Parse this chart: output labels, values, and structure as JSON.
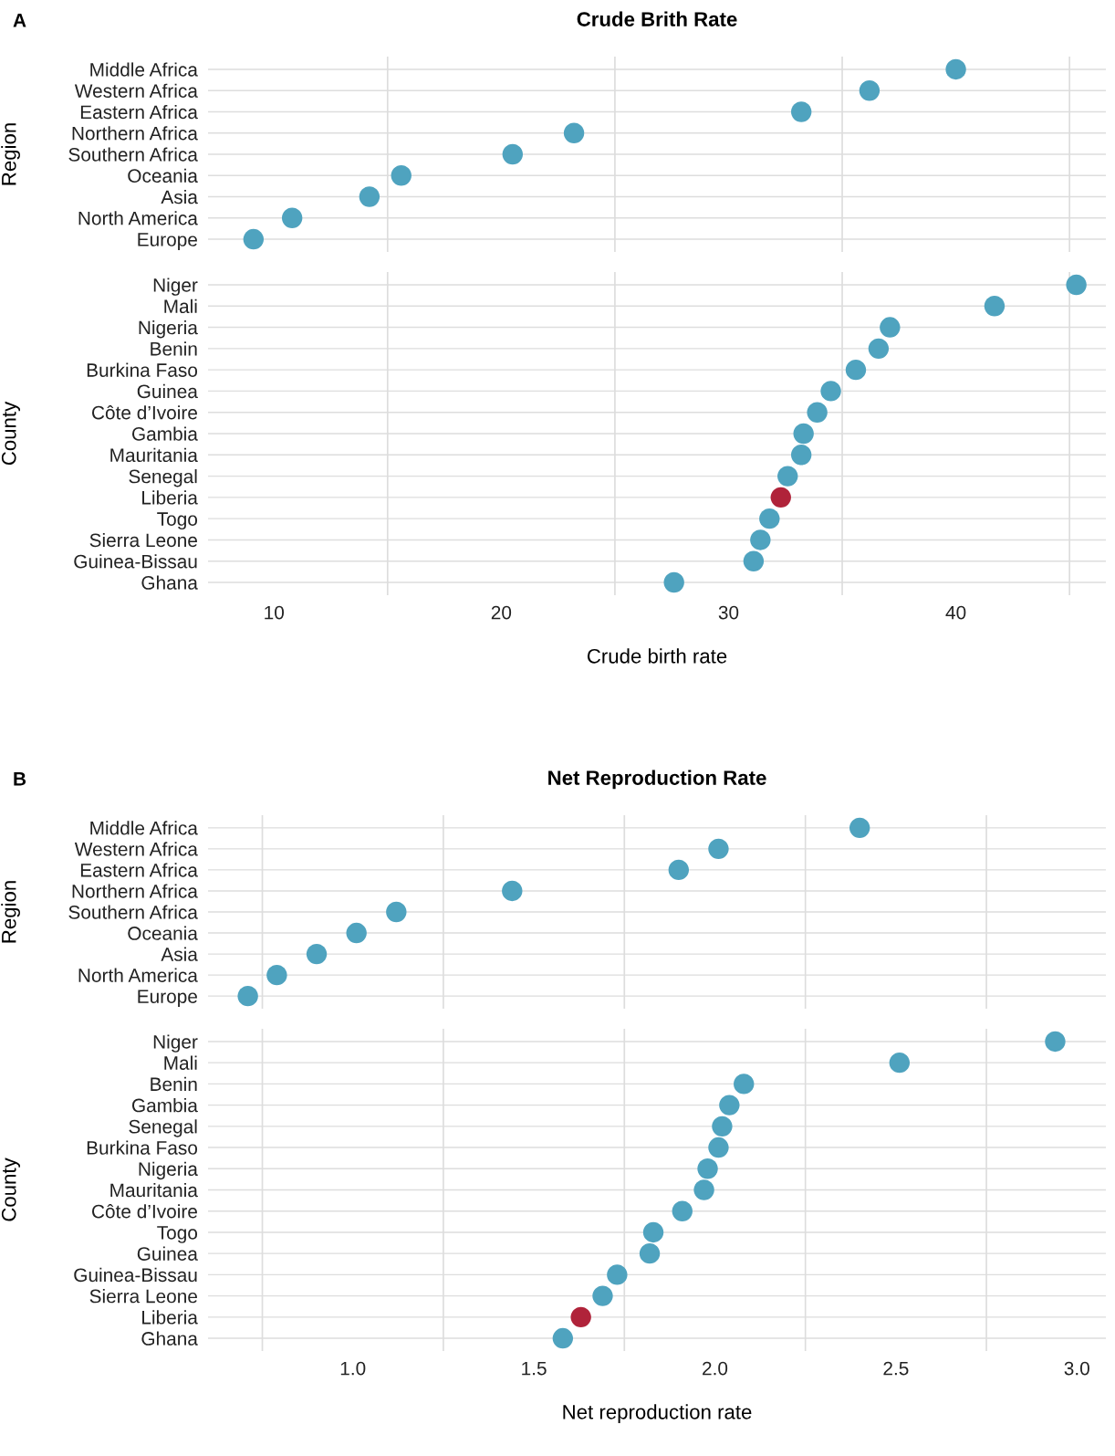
{
  "chart_data": [
    {
      "type": "scatter",
      "orientation": "horizontal",
      "title": "Crude Brith Rate",
      "annotations": [
        "A"
      ],
      "ylabel": "Region",
      "tick_labels": "y",
      "grid": true,
      "categories": [
        "Middle Africa",
        "Western Africa",
        "Eastern Africa",
        "Northern Africa",
        "Southern Africa",
        "Oceania",
        "Asia",
        "North America",
        "Europe"
      ],
      "values": [
        40.0,
        36.2,
        33.2,
        23.2,
        20.5,
        15.6,
        14.2,
        10.8,
        9.1
      ],
      "colors": [
        "#4fa3bf",
        "#4fa3bf",
        "#4fa3bf",
        "#4fa3bf",
        "#4fa3bf",
        "#4fa3bf",
        "#4fa3bf",
        "#4fa3bf",
        "#4fa3bf"
      ],
      "xlim": [
        7.1,
        46.6
      ],
      "xticks": [
        {
          "value": 15,
          "label": null
        },
        {
          "value": 25,
          "label": null
        },
        {
          "value": 35,
          "label": null
        },
        {
          "value": 45,
          "label": null
        }
      ]
    },
    {
      "type": "scatter",
      "orientation": "horizontal",
      "xlabel": "Crude birth rate",
      "ylabel": "County",
      "grid": true,
      "categories": [
        "Niger",
        "Mali",
        "Nigeria",
        "Benin",
        "Burkina Faso",
        "Guinea",
        "Côte d’Ivoire",
        "Gambia",
        "Mauritania",
        "Senegal",
        "Liberia",
        "Togo",
        "Sierra Leone",
        "Guinea-Bissau",
        "Ghana"
      ],
      "values": [
        45.3,
        41.7,
        37.1,
        36.6,
        35.6,
        34.5,
        33.9,
        33.3,
        33.2,
        32.6,
        32.3,
        31.8,
        31.4,
        31.1,
        27.6
      ],
      "colors": [
        "#4fa3bf",
        "#4fa3bf",
        "#4fa3bf",
        "#4fa3bf",
        "#4fa3bf",
        "#4fa3bf",
        "#4fa3bf",
        "#4fa3bf",
        "#4fa3bf",
        "#4fa3bf",
        "#b0233a",
        "#4fa3bf",
        "#4fa3bf",
        "#4fa3bf",
        "#4fa3bf"
      ],
      "xlim": [
        7.1,
        46.6
      ],
      "xticks": [
        10,
        {
          "value": 15,
          "label": null
        },
        20,
        {
          "value": 25,
          "label": null
        },
        30,
        {
          "value": 35,
          "label": null
        },
        40,
        {
          "value": 45,
          "label": null
        }
      ]
    },
    {
      "type": "scatter",
      "orientation": "horizontal",
      "title": "Net Reproduction Rate",
      "annotations": [
        "B"
      ],
      "ylabel": "Region",
      "tick_labels": "y",
      "grid": true,
      "categories": [
        "Middle Africa",
        "Western Africa",
        "Eastern Africa",
        "Northern Africa",
        "Southern Africa",
        "Oceania",
        "Asia",
        "North America",
        "Europe"
      ],
      "values": [
        2.4,
        2.01,
        1.9,
        1.44,
        1.12,
        1.01,
        0.9,
        0.79,
        0.71
      ],
      "colors": [
        "#4fa3bf",
        "#4fa3bf",
        "#4fa3bf",
        "#4fa3bf",
        "#4fa3bf",
        "#4fa3bf",
        "#4fa3bf",
        "#4fa3bf",
        "#4fa3bf"
      ],
      "xlim": [
        0.6,
        3.08
      ],
      "xticks": [
        {
          "value": 0.75,
          "label": null
        },
        {
          "value": 1.25,
          "label": null
        },
        {
          "value": 1.75,
          "label": null
        },
        {
          "value": 2.25,
          "label": null
        },
        {
          "value": 2.75,
          "label": null
        }
      ]
    },
    {
      "type": "scatter",
      "orientation": "horizontal",
      "xlabel": "Net reproduction rate",
      "ylabel": "County",
      "grid": true,
      "categories": [
        "Niger",
        "Mali",
        "Benin",
        "Gambia",
        "Senegal",
        "Burkina Faso",
        "Nigeria",
        "Mauritania",
        "Côte d’Ivoire",
        "Togo",
        "Guinea",
        "Guinea-Bissau",
        "Sierra Leone",
        "Liberia",
        "Ghana"
      ],
      "values": [
        2.94,
        2.51,
        2.08,
        2.04,
        2.02,
        2.01,
        1.98,
        1.97,
        1.91,
        1.83,
        1.82,
        1.73,
        1.69,
        1.63,
        1.58
      ],
      "colors": [
        "#4fa3bf",
        "#4fa3bf",
        "#4fa3bf",
        "#4fa3bf",
        "#4fa3bf",
        "#4fa3bf",
        "#4fa3bf",
        "#4fa3bf",
        "#4fa3bf",
        "#4fa3bf",
        "#4fa3bf",
        "#4fa3bf",
        "#4fa3bf",
        "#b0233a",
        "#4fa3bf"
      ],
      "xlim": [
        0.6,
        3.08
      ],
      "xticks": [
        {
          "value": 0.75,
          "label": null
        },
        {
          "value": 1.0,
          "label": "1.0"
        },
        {
          "value": 1.25,
          "label": null
        },
        {
          "value": 1.5,
          "label": "1.5"
        },
        {
          "value": 1.75,
          "label": null
        },
        {
          "value": 2.0,
          "label": "2.0"
        },
        {
          "value": 2.25,
          "label": null
        },
        {
          "value": 2.5,
          "label": "2.5"
        },
        {
          "value": 2.75,
          "label": null
        },
        {
          "value": 3.0,
          "label": "3.0"
        }
      ]
    }
  ]
}
